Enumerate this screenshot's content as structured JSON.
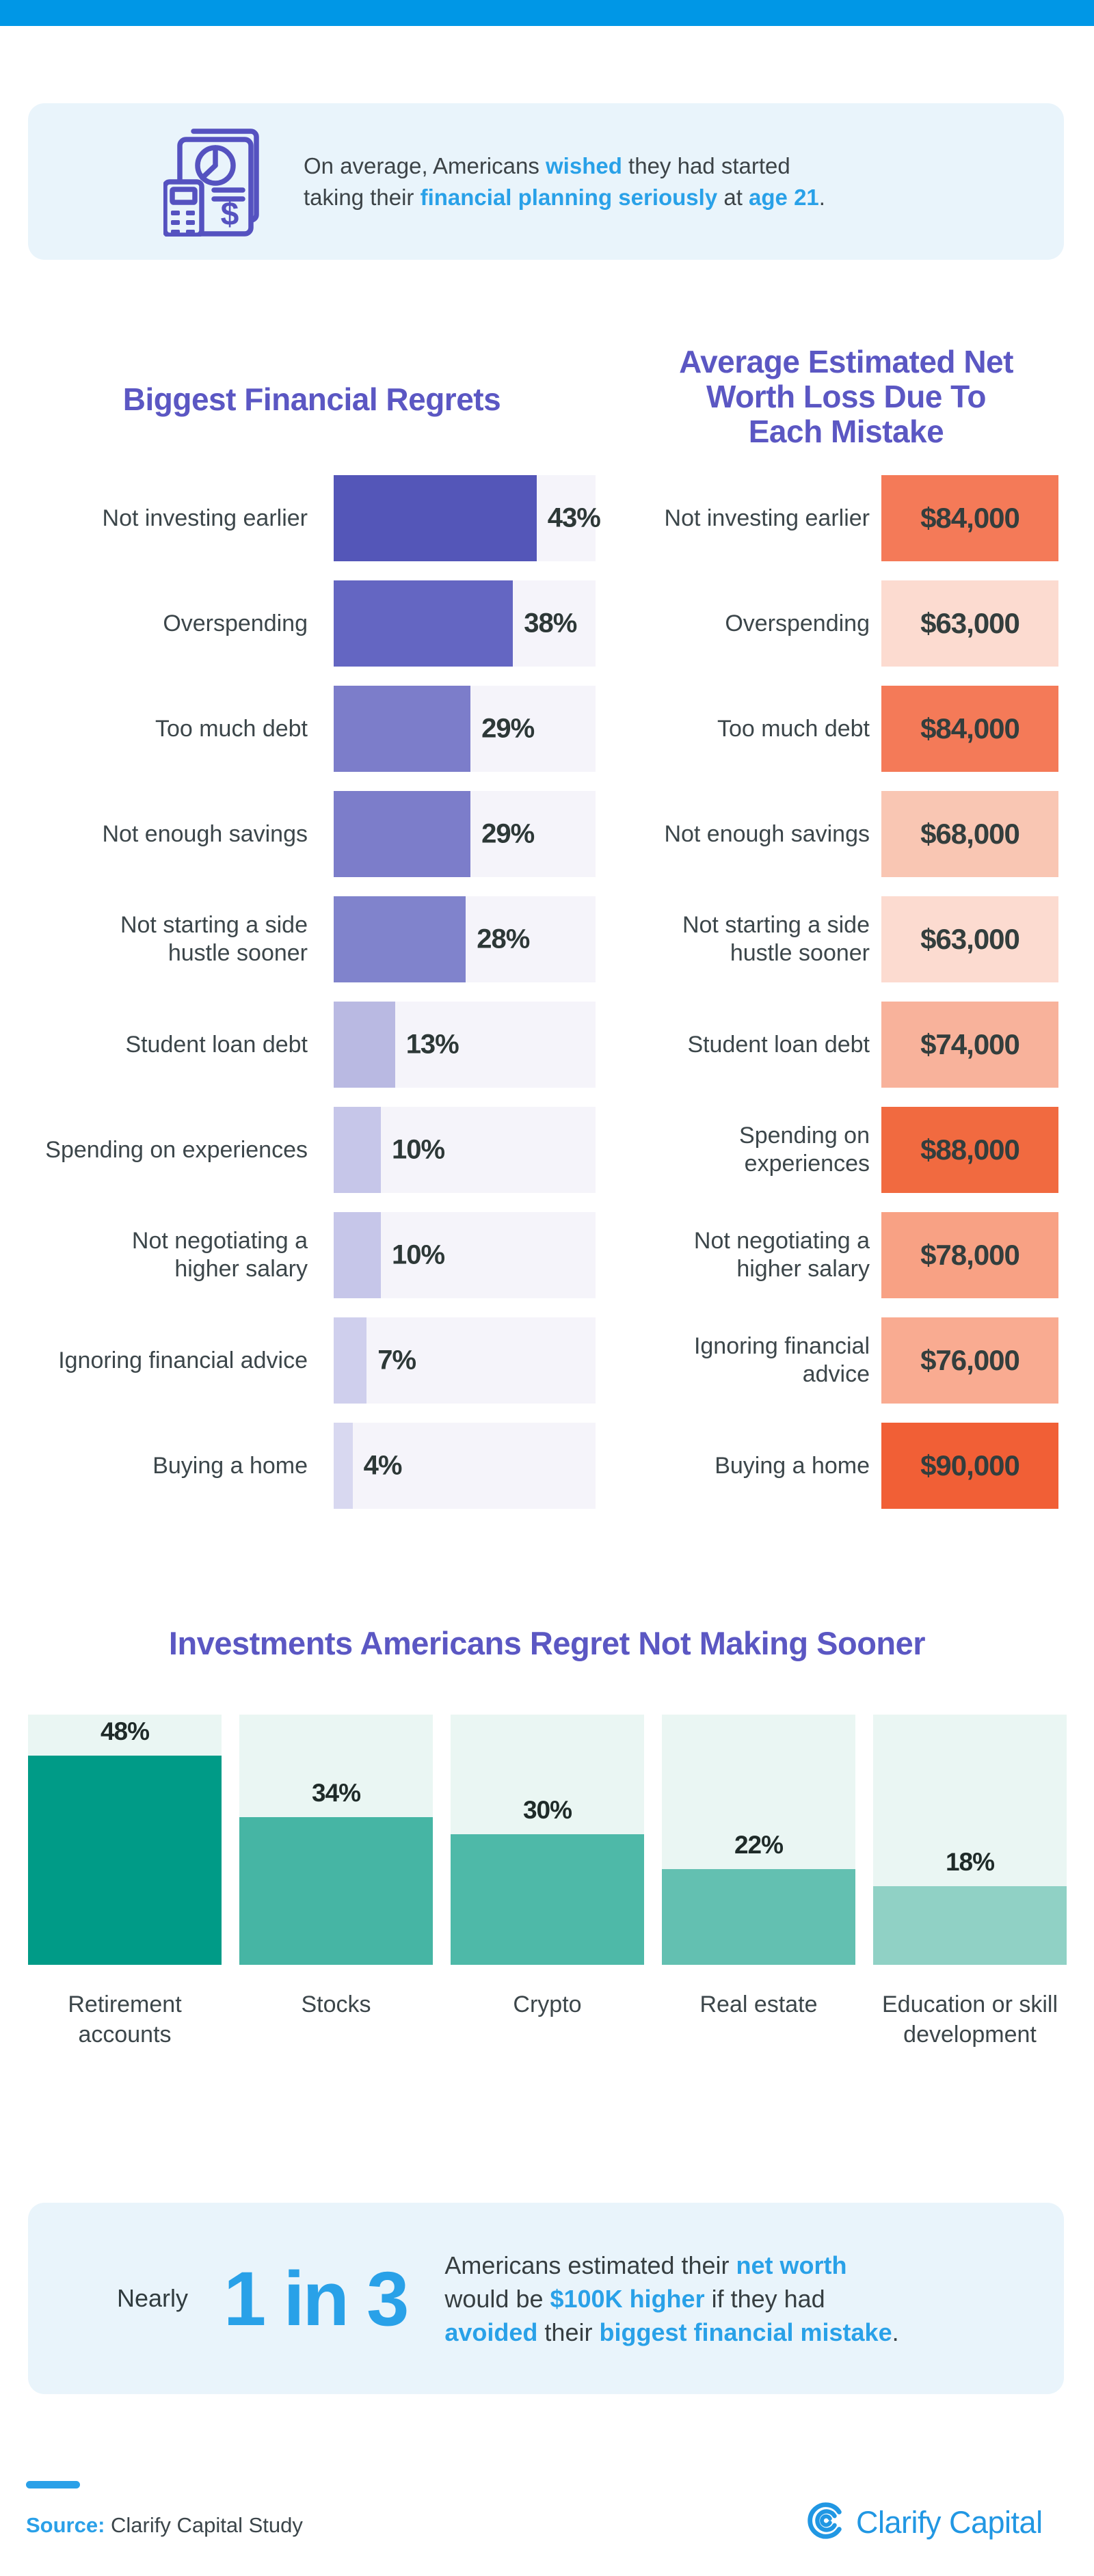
{
  "colors": {
    "top_bar": "#0097e6",
    "accent_blue": "#29a1e8",
    "title_purple": "#5b57c3",
    "callout_bg": "#e9f4fb",
    "logo_blue": "#2197e3"
  },
  "intro_callout": {
    "icon": "financial-report-calculator-icon",
    "segments": [
      {
        "t": "On average, Americans "
      },
      {
        "t": "wished",
        "hl": true
      },
      {
        "t": " they had started"
      },
      {
        "br": true
      },
      {
        "t": "taking their "
      },
      {
        "t": "financial planning seriously",
        "hl": true
      },
      {
        "t": " at "
      },
      {
        "t": "age 21",
        "hl": true
      },
      {
        "t": "."
      }
    ]
  },
  "chart_data": [
    {
      "id": "biggest-financial-regrets",
      "type": "bar",
      "orientation": "horizontal",
      "title": "Biggest Financial Regrets",
      "categories": [
        "Not investing earlier",
        "Overspending",
        "Too much debt",
        "Not enough savings",
        "Not starting a side hustle sooner",
        "Student loan debt",
        "Spending on experiences",
        "Not negotiating a higher salary",
        "Ignoring financial advice",
        "Buying a home"
      ],
      "values": [
        43,
        38,
        29,
        29,
        28,
        13,
        10,
        10,
        7,
        4
      ],
      "unit": "%",
      "value_labels": [
        "43%",
        "38%",
        "29%",
        "29%",
        "28%",
        "13%",
        "10%",
        "10%",
        "7%",
        "4%"
      ],
      "label_lines": [
        [
          "Not investing earlier"
        ],
        [
          "Overspending"
        ],
        [
          "Too much debt"
        ],
        [
          "Not enough savings"
        ],
        [
          "Not starting a side",
          "hustle sooner"
        ],
        [
          "Student loan debt"
        ],
        [
          "Spending on experiences"
        ],
        [
          "Not negotiating a",
          "higher salary"
        ],
        [
          "Ignoring financial advice"
        ],
        [
          "Buying a home"
        ]
      ],
      "bar_colors": [
        "#5456b8",
        "#6466c2",
        "#7c7dca",
        "#7c7dca",
        "#8083cc",
        "#b9b9e2",
        "#c6c6e9",
        "#c6c6e9",
        "#cfcfed",
        "#d8d8f0"
      ],
      "track_color": "#f5f4fa",
      "scale_max": 55.5,
      "grid": false,
      "legend": false
    },
    {
      "id": "net-worth-loss",
      "type": "bar",
      "orientation": "horizontal",
      "style": "uniform-value-boxes",
      "title": "Average Estimated Net Worth Loss Due To Each Mistake",
      "title_lines": [
        "Average Estimated Net",
        "Worth Loss Due To",
        "Each Mistake"
      ],
      "categories": [
        "Not investing earlier",
        "Overspending",
        "Too much debt",
        "Not enough savings",
        "Not starting a side hustle sooner",
        "Student loan debt",
        "Spending on experiences",
        "Not negotiating a higher salary",
        "Ignoring financial advice",
        "Buying a home"
      ],
      "values": [
        84000,
        63000,
        84000,
        68000,
        63000,
        74000,
        88000,
        78000,
        76000,
        90000
      ],
      "unit": "USD",
      "value_labels": [
        "$84,000",
        "$63,000",
        "$84,000",
        "$68,000",
        "$63,000",
        "$74,000",
        "$88,000",
        "$78,000",
        "$76,000",
        "$90,000"
      ],
      "label_lines": [
        [
          "Not investing earlier"
        ],
        [
          "Overspending"
        ],
        [
          "Too much debt"
        ],
        [
          "Not enough savings"
        ],
        [
          "Not starting a side",
          "hustle sooner"
        ],
        [
          "Student loan debt"
        ],
        [
          "Spending on",
          "experiences"
        ],
        [
          "Not negotiating a",
          "higher salary"
        ],
        [
          "Ignoring financial",
          "advice"
        ],
        [
          "Buying a home"
        ]
      ],
      "box_colors": [
        "#f47a58",
        "#fcdbd0",
        "#f47a58",
        "#f9c6b3",
        "#fcdbd0",
        "#f8b29b",
        "#f16a40",
        "#f8a184",
        "#f9ab91",
        "#f15f36"
      ],
      "grid": false,
      "legend": false
    },
    {
      "id": "investments-regret",
      "type": "bar",
      "orientation": "vertical",
      "title": "Investments Americans Regret Not Making Sooner",
      "categories": [
        "Retirement accounts",
        "Stocks",
        "Crypto",
        "Real estate",
        "Education or skill development"
      ],
      "values": [
        48,
        34,
        30,
        22,
        18
      ],
      "unit": "%",
      "value_labels": [
        "48%",
        "34%",
        "30%",
        "22%",
        "18%"
      ],
      "label_lines": [
        [
          "Retirement",
          "accounts"
        ],
        [
          "Stocks"
        ],
        [
          "Crypto"
        ],
        [
          "Real estate"
        ],
        [
          "Education or skill",
          "development"
        ]
      ],
      "bar_colors": [
        "#009b87",
        "#46b5a4",
        "#4eb9a8",
        "#63c0b1",
        "#90d1c5"
      ],
      "track_color": "#eaf6f3",
      "scale_max": 57.5,
      "grid": false,
      "legend": false
    }
  ],
  "bottom_callout": {
    "prefix": "Nearly",
    "big_stat": "1 in 3",
    "segments": [
      {
        "t": "Americans estimated their "
      },
      {
        "t": "net worth",
        "hl": true
      },
      {
        "br": true
      },
      {
        "t": "would be "
      },
      {
        "t": "$100K higher",
        "hl": true
      },
      {
        "t": " if they had"
      },
      {
        "br": true
      },
      {
        "t": "avoided",
        "hl": true
      },
      {
        "t": " their "
      },
      {
        "t": "biggest financial mistake",
        "hl": true
      },
      {
        "t": "."
      }
    ]
  },
  "footer": {
    "source_label": "Source:",
    "source_text": " Clarify Capital Study",
    "brand_name": "Clarify Capital",
    "brand_icon": "clarify-capital-logo-mark"
  }
}
